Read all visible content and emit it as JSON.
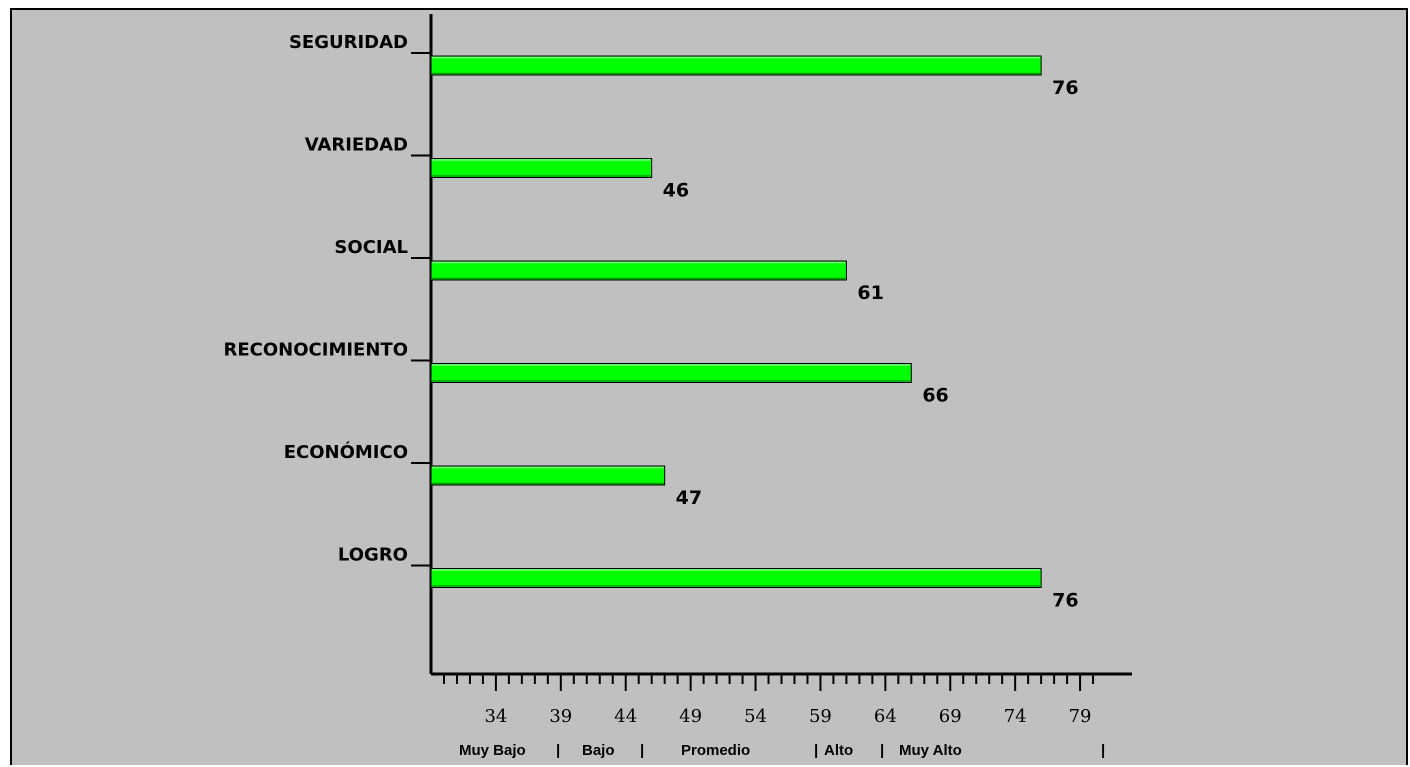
{
  "colors": {
    "background": "#c0c0c0",
    "bar": "#00ff00",
    "bar_highlight": "#7cff7c",
    "bar_shadow": "#00a000",
    "axis": "#000000"
  },
  "chart_data": {
    "type": "bar",
    "orientation": "horizontal",
    "categories": [
      "SEGURIDAD",
      "VARIEDAD",
      "SOCIAL",
      "RECONOCIMIENTO",
      "ECONÓMICO",
      "LOGRO"
    ],
    "values": [
      76,
      46,
      61,
      66,
      47,
      76
    ],
    "value_labels": [
      "76",
      "46",
      "61",
      "66",
      "47",
      "76"
    ],
    "xlim": [
      29,
      83
    ],
    "x_ticks": [
      34,
      39,
      44,
      49,
      54,
      59,
      64,
      69,
      74,
      79
    ],
    "x_tick_labels": [
      "34",
      "39",
      "44",
      "49",
      "54",
      "59",
      "64",
      "69",
      "74",
      "79"
    ],
    "bands": [
      {
        "label": "Muy Bajo",
        "separator": "|"
      },
      {
        "label": "Bajo",
        "separator": "|"
      },
      {
        "label": "Promedio",
        "separator": "|"
      },
      {
        "label": "Alto",
        "separator": "|"
      },
      {
        "label": "Muy Alto",
        "separator": "|"
      }
    ],
    "grid": false,
    "legend": "none",
    "title": "",
    "xlabel": "",
    "ylabel": ""
  }
}
